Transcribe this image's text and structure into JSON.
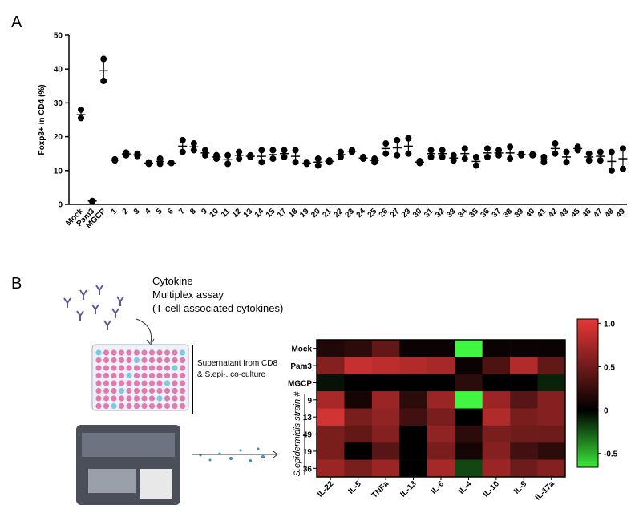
{
  "panels": {
    "a": "A",
    "b": "B"
  },
  "diagram": {
    "line1": "Cytokine",
    "line2": "Multiplex assay",
    "line3": "(T-cell associated cytokines)",
    "note1": "Supernatant from CD8",
    "note2": "& S.epi-. co-culture"
  },
  "chart_data": [
    {
      "type": "dot",
      "ylabel": "Foxp3+ in CD4 (%)",
      "color": "#000000",
      "ylim": [
        0,
        50
      ],
      "yticks": [
        0,
        10,
        20,
        30,
        40,
        50
      ],
      "categories": [
        "Mock",
        "Pam3",
        "MGCP",
        "1",
        "2",
        "3",
        "4",
        "5",
        "6",
        "7",
        "8",
        "9",
        "10",
        "11",
        "12",
        "13",
        "14",
        "15",
        "17",
        "18",
        "19",
        "20",
        "21",
        "22",
        "23",
        "24",
        "25",
        "26",
        "27",
        "29",
        "30",
        "31",
        "32",
        "33",
        "34",
        "35",
        "36",
        "37",
        "38",
        "39",
        "40",
        "41",
        "42",
        "43",
        "45",
        "46",
        "47",
        "48",
        "49"
      ],
      "points": [
        [
          28,
          25.5
        ],
        [
          1,
          0.8
        ],
        [
          43,
          36.5
        ],
        [
          13,
          13.3
        ],
        [
          14.5,
          15.3
        ],
        [
          14.3,
          15
        ],
        [
          12,
          12.4
        ],
        [
          12,
          13.5
        ],
        [
          12.2,
          12.3
        ],
        [
          15.5,
          19
        ],
        [
          16,
          18
        ],
        [
          14.5,
          16
        ],
        [
          13.5,
          14.5
        ],
        [
          12,
          14.5
        ],
        [
          13.5,
          15.5
        ],
        [
          14,
          14.5
        ],
        [
          12.5,
          16
        ],
        [
          13.5,
          16
        ],
        [
          14,
          16
        ],
        [
          12.5,
          16
        ],
        [
          12,
          12.5
        ],
        [
          11.5,
          13.5
        ],
        [
          12.5,
          13
        ],
        [
          14,
          15.5
        ],
        [
          15.5,
          16
        ],
        [
          13.5,
          14
        ],
        [
          12.5,
          13.5
        ],
        [
          15,
          18
        ],
        [
          14.5,
          19
        ],
        [
          15,
          19.5
        ],
        [
          12.2,
          12.8
        ],
        [
          14,
          16
        ],
        [
          14,
          16
        ],
        [
          13,
          14.5
        ],
        [
          13.5,
          16.5
        ],
        [
          11.5,
          14
        ],
        [
          14,
          16.5
        ],
        [
          14.5,
          16
        ],
        [
          13.5,
          17
        ],
        [
          14.5,
          15
        ],
        [
          14.5,
          14.8
        ],
        [
          12.5,
          14
        ],
        [
          15,
          18
        ],
        [
          12.5,
          15.5
        ],
        [
          16,
          17
        ],
        [
          13,
          15
        ],
        [
          13,
          15.5
        ],
        [
          10,
          15.5
        ],
        [
          10.5,
          16.5
        ]
      ],
      "means": [
        26.5,
        1,
        39.5,
        13.1,
        14.9,
        14.6,
        12.2,
        12.7,
        12.2,
        17.2,
        17,
        15.2,
        14,
        13.2,
        14.5,
        14.2,
        14.2,
        14.7,
        15,
        14.2,
        12.2,
        12.5,
        12.7,
        14.7,
        15.7,
        13.7,
        13,
        16.5,
        16.7,
        17.2,
        12.5,
        15,
        15,
        13.7,
        15,
        12.7,
        15.2,
        15.2,
        15.2,
        14.7,
        14.6,
        13.2,
        16.5,
        14,
        16.5,
        14,
        14.2,
        12.7,
        13.5
      ]
    },
    {
      "type": "heatmap",
      "group_label": "S.epidermidis strain #",
      "rows": [
        "Mock",
        "Pam3",
        "MGCP",
        "9",
        "13",
        "49",
        "19",
        "36"
      ],
      "columns": [
        "IL-22",
        "IL-5",
        "TNFa",
        "IL-13",
        "IL-6",
        "IL-4",
        "IL-10",
        "IL-9",
        "IL-17a"
      ],
      "values": [
        [
          0.15,
          0.2,
          0.45,
          0.05,
          0.05,
          -0.7,
          0.05,
          0.05,
          0.05
        ],
        [
          0.6,
          0.9,
          0.85,
          0.8,
          0.75,
          0.05,
          0.35,
          0.8,
          0.45
        ],
        [
          -0.05,
          0,
          0,
          0,
          0,
          0.2,
          0,
          0,
          -0.1
        ],
        [
          0.75,
          0.1,
          0.7,
          0.2,
          0.7,
          -0.7,
          0.7,
          0.4,
          0.6
        ],
        [
          0.95,
          0.55,
          0.65,
          0.3,
          0.55,
          0,
          0.8,
          0.55,
          0.6
        ],
        [
          0.55,
          0.45,
          0.6,
          0,
          0.65,
          0.2,
          0.55,
          0.5,
          0.5
        ],
        [
          0.55,
          0,
          0.4,
          0,
          0.55,
          0.1,
          0.6,
          0.3,
          0.2
        ],
        [
          0.7,
          0.55,
          0.7,
          0,
          0.75,
          -0.2,
          0.7,
          0.5,
          0.6
        ]
      ],
      "clim": [
        -0.66,
        1.05
      ],
      "cticks": [
        {
          "value": 1,
          "label": "1.0"
        },
        0.5,
        0,
        -0.5
      ],
      "high_color": "#e83838",
      "mid_color": "#000000",
      "low_color": "#3ce83c"
    }
  ]
}
